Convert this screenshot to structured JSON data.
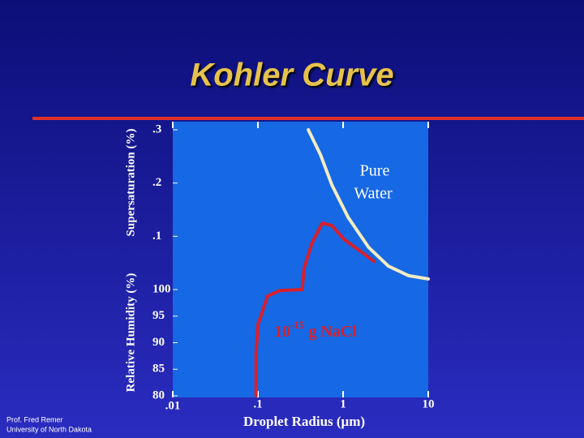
{
  "chart_data": {
    "type": "line",
    "title": "Kohler Curve",
    "x_label": "Droplet Radius (μm)",
    "y_label": "Relative Humidity (%)",
    "y2_label": "Supersaturation (%)",
    "log_x": true,
    "xlim": [
      0.01,
      10
    ],
    "xticks": [
      {
        "value": 0.01,
        "label": ".01"
      },
      {
        "value": 0.1,
        "label": ".1"
      },
      1,
      10
    ],
    "ylim": [
      80,
      100
    ],
    "yticks": [
      80,
      85,
      90,
      95,
      100
    ],
    "y2lim": [
      0,
      0.3
    ],
    "y2ticks": [
      {
        "value": 0.1,
        "label": ".1"
      },
      {
        "value": 0.2,
        "label": ".2"
      },
      {
        "value": 0.3,
        "label": ".3"
      }
    ],
    "series": [
      {
        "color": "#d8202c",
        "axis": "y",
        "x": [
          0.095,
          0.095,
          0.1,
          0.13,
          0.18,
          0.33
        ],
        "values": [
          80,
          88,
          93.4,
          98.8,
          99.8,
          100
        ]
      },
      {
        "color": "#d8202c",
        "axis": "y2",
        "x": [
          0.33,
          0.35,
          0.43,
          0.57,
          0.74,
          1.03,
          1.6,
          2.3
        ],
        "values": [
          0,
          0.041,
          0.087,
          0.125,
          0.12,
          0.094,
          0.072,
          0.053
        ]
      },
      {
        "color": "#f3ecc2",
        "axis": "y2",
        "x": [
          0.39,
          0.54,
          0.74,
          1.15,
          2.0,
          3.4,
          5.9,
          10
        ],
        "values": [
          0.3,
          0.254,
          0.196,
          0.135,
          0.079,
          0.044,
          0.026,
          0.02
        ]
      }
    ],
    "annotations": {
      "pure_water": [
        "Pure",
        "Water"
      ],
      "salt": {
        "base": "10",
        "exponent": "-15",
        "rest": " g NaCl"
      }
    },
    "credit": [
      "Prof. Fred Remer",
      "University of North Dakota"
    ]
  }
}
